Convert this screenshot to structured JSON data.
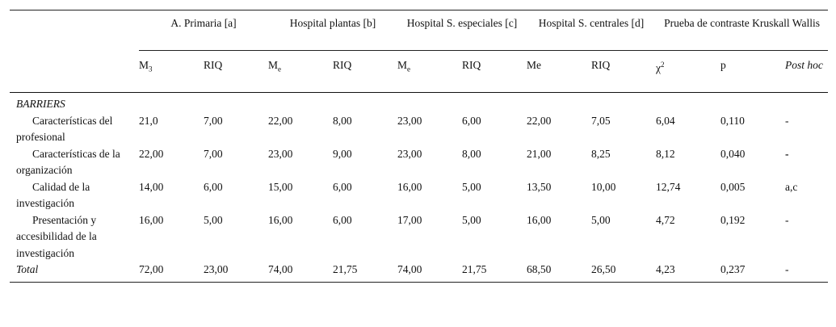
{
  "table": {
    "groups": [
      "A. Primaria [a]",
      "Hospital plantas [b]",
      "Hospital S. especiales [c]",
      "Hospital S. centrales [d]",
      "Prueba de contraste Kruskall Wallis"
    ],
    "subheaders": [
      {
        "text": "M",
        "sub": "3"
      },
      {
        "text": "RIQ"
      },
      {
        "text": "M",
        "sub": "e"
      },
      {
        "text": "RIQ"
      },
      {
        "text": "M",
        "sub": "e"
      },
      {
        "text": "RIQ"
      },
      {
        "text": "Me"
      },
      {
        "text": "RIQ"
      },
      {
        "text": "χ",
        "sup": "2"
      },
      {
        "text": "p"
      },
      {
        "text": "Post hoc"
      }
    ],
    "section": "BARRIERS",
    "rows": [
      {
        "label": "Características del profesional",
        "cells": [
          "21,0",
          "7,00",
          "22,00",
          "8,00",
          "23,00",
          "6,00",
          "22,00",
          "7,05",
          "6,04",
          "0,110",
          "-"
        ]
      },
      {
        "label": "Características de la organización",
        "cells": [
          "22,00",
          "7,00",
          "23,00",
          "9,00",
          "23,00",
          "8,00",
          "21,00",
          "8,25",
          "8,12",
          "0,040",
          "-"
        ]
      },
      {
        "label": "Calidad de la investigación",
        "cells": [
          "14,00",
          "6,00",
          "15,00",
          "6,00",
          "16,00",
          "5,00",
          "13,50",
          "10,00",
          "12,74",
          "0,005",
          "a,c"
        ]
      },
      {
        "label": "Presentación y accesibilidad de la investigación",
        "cells": [
          "16,00",
          "5,00",
          "16,00",
          "6,00",
          "17,00",
          "5,00",
          "16,00",
          "5,00",
          "4,72",
          "0,192",
          "-"
        ]
      }
    ],
    "total": {
      "label": "Total",
      "cells": [
        "72,00",
        "23,00",
        "74,00",
        "21,75",
        "74,00",
        "21,75",
        "68,50",
        "26,50",
        "4,23",
        "0,237",
        "-"
      ]
    }
  }
}
